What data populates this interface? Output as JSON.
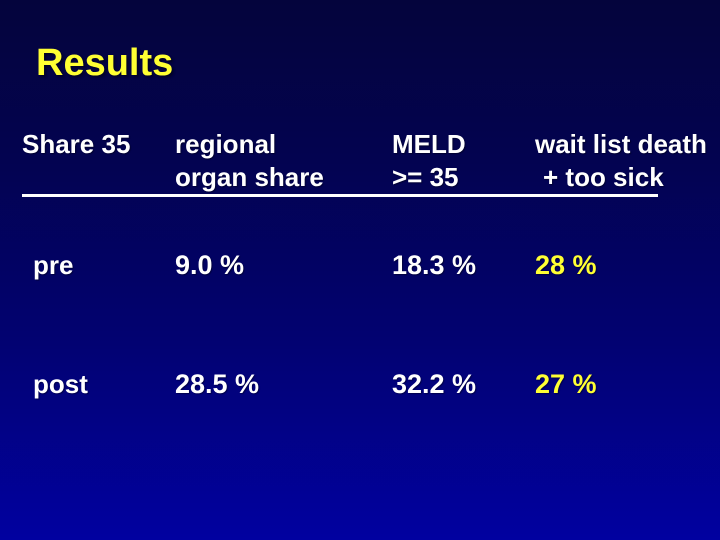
{
  "slide": {
    "title": "Results",
    "table": {
      "header": {
        "col1": {
          "line1": "",
          "line2": "Share 35"
        },
        "col2": {
          "line1": "regional",
          "line2": "organ share"
        },
        "col3": {
          "line1": "MELD",
          "line2": ">= 35"
        },
        "col4": {
          "line1": "wait list death",
          "line2": "+ too sick"
        }
      },
      "rows": [
        {
          "label": "pre",
          "regional_organ_share": "9.0 %",
          "meld_ge_35": "18.3 %",
          "wait_list_death_too_sick": "28 %"
        },
        {
          "label": "post",
          "regional_organ_share": "28.5 %",
          "meld_ge_35": "32.2 %",
          "wait_list_death_too_sick": "27 %"
        }
      ]
    },
    "colors": {
      "background_top": "#04043c",
      "background_bottom": "#0101a0",
      "title_yellow": "#ffff33",
      "body_white": "#ffffff",
      "highlight_yellow": "#ffff33"
    }
  },
  "chart_data": {
    "type": "table",
    "title": "Results",
    "columns": [
      "Share 35",
      "regional organ share",
      "MELD >= 35",
      "wait list death + too sick"
    ],
    "rows": [
      [
        "pre",
        "9.0 %",
        "18.3 %",
        "28 %"
      ],
      [
        "post",
        "28.5 %",
        "32.2 %",
        "27 %"
      ]
    ],
    "notes_layout": "last column values rendered in yellow; header row underlined"
  }
}
